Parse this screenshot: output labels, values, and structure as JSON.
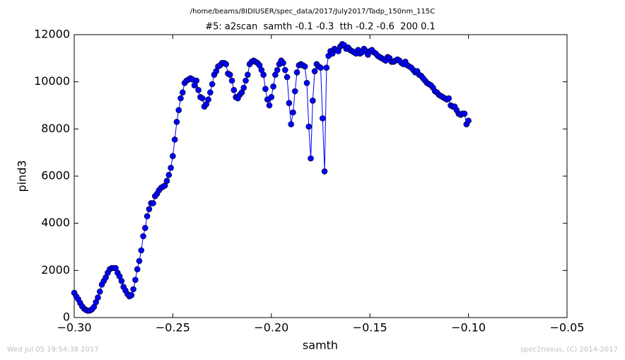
{
  "chart_data": {
    "type": "line",
    "suptitle": "/home/beams/8IDIUSER/spec_data/2017/July2017/Tadp_150nm_115C",
    "title": "#5: a2scan  samth -0.1 -0.3  tth -0.2 -0.6  200 0.1",
    "xlabel": "samth",
    "ylabel": "pind3",
    "footer_left": "Wed Jul 05 19:54:38 2017",
    "footer_right": "spec2nexus, (C) 2014-2017",
    "xlim": [
      -0.3,
      -0.05
    ],
    "xticks": [
      {
        "value": -0.3,
        "label": "−0.30"
      },
      {
        "value": -0.25,
        "label": "−0.25"
      },
      {
        "value": -0.2,
        "label": "−0.20"
      },
      {
        "value": -0.15,
        "label": "−0.15"
      },
      {
        "value": -0.1,
        "label": "−0.10"
      },
      {
        "value": -0.05,
        "label": "−0.05"
      }
    ],
    "ylim": [
      0,
      12000
    ],
    "yticks": [
      0,
      2000,
      4000,
      6000,
      8000,
      10000,
      12000
    ],
    "x": [
      -0.3,
      -0.299,
      -0.298,
      -0.297,
      -0.296,
      -0.295,
      -0.294,
      -0.293,
      -0.292,
      -0.291,
      -0.29,
      -0.289,
      -0.288,
      -0.287,
      -0.286,
      -0.285,
      -0.284,
      -0.283,
      -0.282,
      -0.281,
      -0.28,
      -0.279,
      -0.278,
      -0.277,
      -0.276,
      -0.275,
      -0.274,
      -0.273,
      -0.272,
      -0.271,
      -0.27,
      -0.269,
      -0.268,
      -0.267,
      -0.266,
      -0.265,
      -0.264,
      -0.263,
      -0.262,
      -0.261,
      -0.26,
      -0.259,
      -0.258,
      -0.257,
      -0.256,
      -0.255,
      -0.254,
      -0.253,
      -0.252,
      -0.251,
      -0.25,
      -0.249,
      -0.248,
      -0.247,
      -0.246,
      -0.245,
      -0.244,
      -0.243,
      -0.242,
      -0.241,
      -0.24,
      -0.239,
      -0.238,
      -0.237,
      -0.236,
      -0.235,
      -0.234,
      -0.233,
      -0.232,
      -0.231,
      -0.23,
      -0.229,
      -0.228,
      -0.227,
      -0.226,
      -0.225,
      -0.224,
      -0.223,
      -0.222,
      -0.221,
      -0.22,
      -0.219,
      -0.218,
      -0.217,
      -0.216,
      -0.215,
      -0.214,
      -0.213,
      -0.212,
      -0.211,
      -0.21,
      -0.209,
      -0.208,
      -0.207,
      -0.206,
      -0.205,
      -0.204,
      -0.203,
      -0.202,
      -0.201,
      -0.2,
      -0.199,
      -0.198,
      -0.197,
      -0.196,
      -0.195,
      -0.194,
      -0.193,
      -0.192,
      -0.191,
      -0.19,
      -0.189,
      -0.188,
      -0.187,
      -0.186,
      -0.185,
      -0.184,
      -0.183,
      -0.182,
      -0.181,
      -0.18,
      -0.179,
      -0.178,
      -0.177,
      -0.176,
      -0.175,
      -0.174,
      -0.173,
      -0.172,
      -0.171,
      -0.17,
      -0.169,
      -0.168,
      -0.167,
      -0.166,
      -0.165,
      -0.164,
      -0.163,
      -0.162,
      -0.161,
      -0.16,
      -0.159,
      -0.158,
      -0.157,
      -0.156,
      -0.155,
      -0.154,
      -0.153,
      -0.152,
      -0.151,
      -0.15,
      -0.149,
      -0.148,
      -0.147,
      -0.146,
      -0.145,
      -0.144,
      -0.143,
      -0.142,
      -0.141,
      -0.14,
      -0.139,
      -0.138,
      -0.137,
      -0.136,
      -0.135,
      -0.134,
      -0.133,
      -0.132,
      -0.131,
      -0.13,
      -0.129,
      -0.128,
      -0.127,
      -0.126,
      -0.125,
      -0.124,
      -0.123,
      -0.122,
      -0.121,
      -0.12,
      -0.119,
      -0.118,
      -0.117,
      -0.116,
      -0.115,
      -0.114,
      -0.113,
      -0.112,
      -0.111,
      -0.11,
      -0.109,
      -0.108,
      -0.107,
      -0.106,
      -0.105,
      -0.104,
      -0.103,
      -0.102,
      -0.101,
      -0.1
    ],
    "series": [
      {
        "color": "#0000ff",
        "values": [
          1050,
          900,
          780,
          620,
          480,
          380,
          320,
          290,
          300,
          350,
          450,
          650,
          850,
          1100,
          1400,
          1550,
          1700,
          1900,
          2050,
          2100,
          2100,
          2100,
          1900,
          1750,
          1550,
          1300,
          1150,
          1000,
          900,
          950,
          1200,
          1600,
          2050,
          2400,
          2850,
          3450,
          3800,
          4300,
          4600,
          4850,
          4850,
          5150,
          5250,
          5400,
          5500,
          5550,
          5600,
          5800,
          6050,
          6350,
          6850,
          7550,
          8300,
          8800,
          9300,
          9550,
          9950,
          10050,
          10100,
          10150,
          10100,
          9850,
          10050,
          9650,
          9350,
          9300,
          8950,
          9050,
          9250,
          9550,
          9900,
          10300,
          10450,
          10650,
          10700,
          10800,
          10800,
          10750,
          10350,
          10300,
          10050,
          9650,
          9350,
          9300,
          9450,
          9550,
          9750,
          10050,
          10300,
          10750,
          10850,
          10900,
          10850,
          10800,
          10700,
          10500,
          10300,
          9700,
          9250,
          9000,
          9350,
          9800,
          10300,
          10500,
          10750,
          10900,
          10800,
          10500,
          10200,
          9100,
          8200,
          8700,
          9600,
          10400,
          10700,
          10750,
          10700,
          10650,
          9950,
          8100,
          6750,
          9200,
          10450,
          10750,
          10650,
          10600,
          8450,
          6200,
          10600,
          11100,
          11300,
          11200,
          11400,
          11350,
          11300,
          11500,
          11600,
          11550,
          11400,
          11450,
          11350,
          11300,
          11250,
          11200,
          11350,
          11200,
          11250,
          11400,
          11300,
          11150,
          11300,
          11350,
          11250,
          11200,
          11100,
          11050,
          11000,
          10950,
          10900,
          11050,
          11000,
          10850,
          10850,
          10900,
          10950,
          10900,
          10800,
          10750,
          10850,
          10700,
          10650,
          10600,
          10500,
          10400,
          10450,
          10300,
          10250,
          10150,
          10050,
          9950,
          9900,
          9850,
          9750,
          9600,
          9550,
          9450,
          9400,
          9350,
          9300,
          9250,
          9300,
          9000,
          8950,
          8950,
          8800,
          8650,
          8600,
          8650,
          8650,
          8200,
          8350
        ]
      }
    ]
  }
}
